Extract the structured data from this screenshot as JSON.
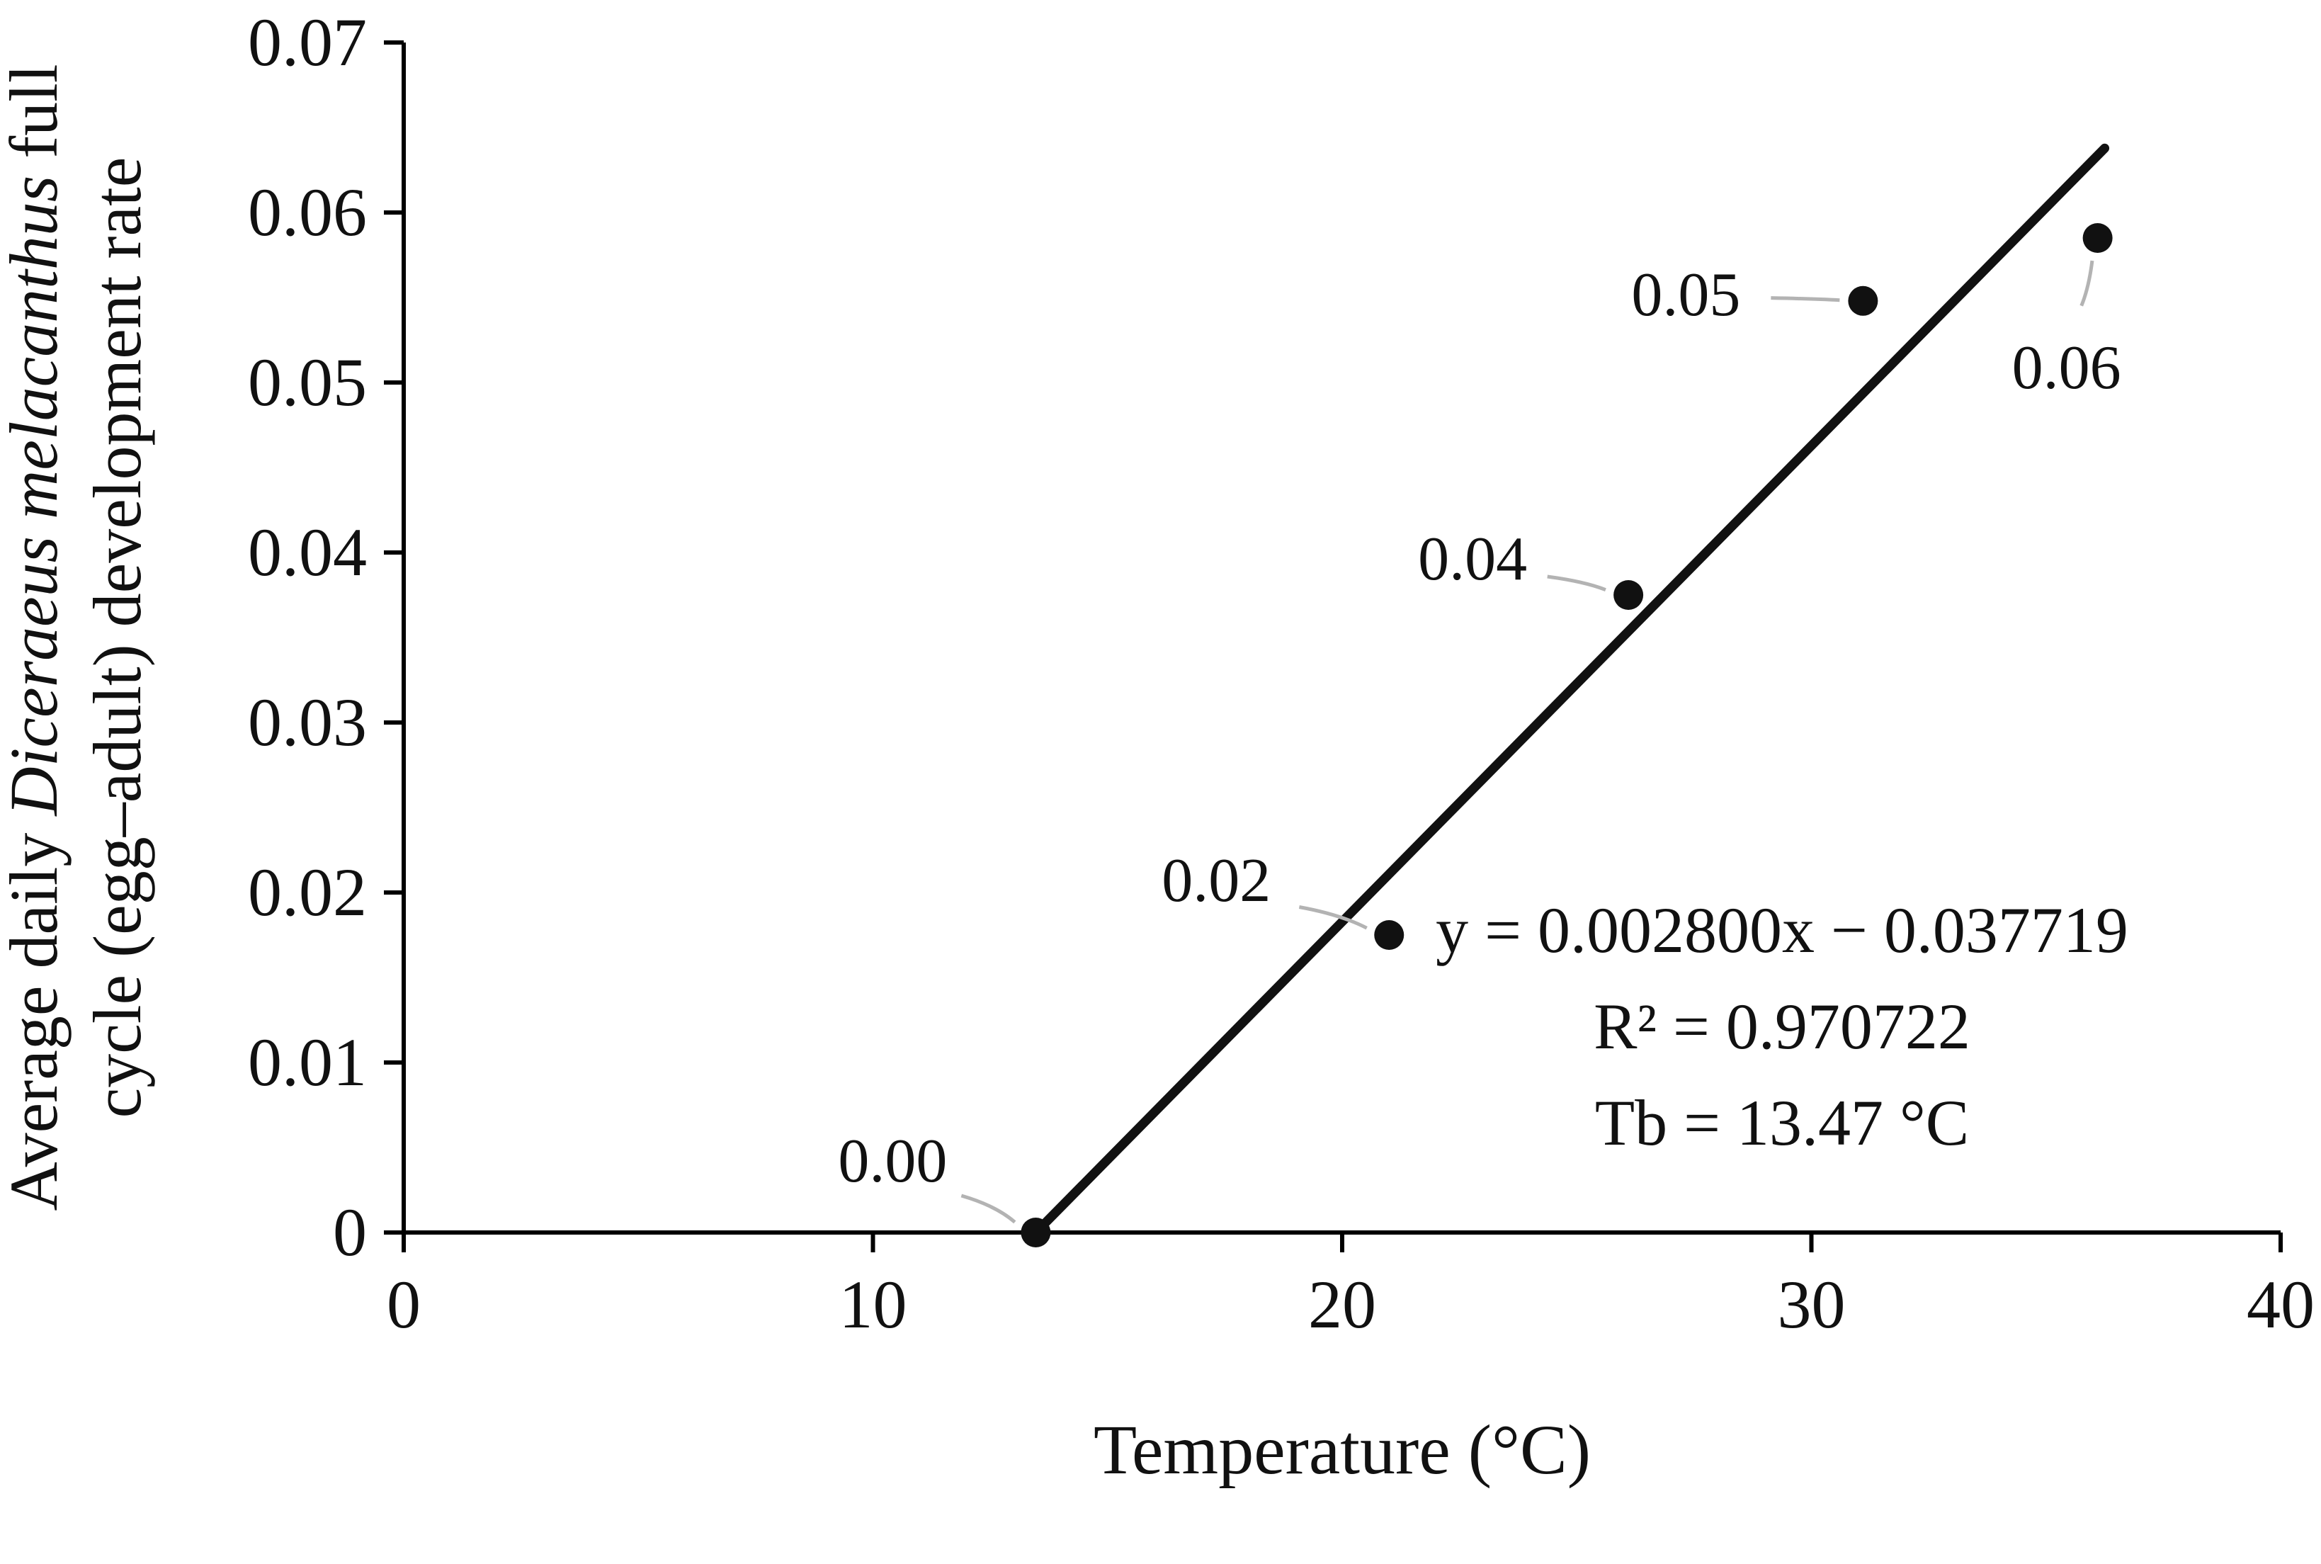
{
  "chart_data": {
    "type": "scatter",
    "title": "",
    "x_axis": {
      "label": "Temperature (°C)",
      "min": 0,
      "max": 40,
      "ticks": [
        0,
        10,
        20,
        30,
        40
      ],
      "tick_labels": [
        "0",
        "10",
        "20",
        "30",
        "40"
      ]
    },
    "y_axis": {
      "label_line1_normal": "Average daily ",
      "label_line1_italic": "Diceraeus melacanthus",
      "label_line1_suffix": " full",
      "label_line2": "cycle (egg–adult) development rate",
      "min": 0,
      "max": 0.07,
      "ticks": [
        0,
        0.01,
        0.02,
        0.03,
        0.04,
        0.05,
        0.06,
        0.07
      ],
      "tick_labels": [
        "0",
        "0.01",
        "0.02",
        "0.03",
        "0.04",
        "0.05",
        "0.06",
        "0.07"
      ]
    },
    "points": [
      {
        "x": 13.47,
        "y": 0.0,
        "label": "0.00",
        "label_offset": [
          -101,
          -50
        ]
      },
      {
        "x": 21.0,
        "y": 0.0175,
        "label": "0.02",
        "label_offset": [
          -122,
          -38
        ]
      },
      {
        "x": 26.1,
        "y": 0.0375,
        "label": "0.04",
        "label_offset": [
          -110,
          -25
        ]
      },
      {
        "x": 31.1,
        "y": 0.0548,
        "label": "0.05",
        "label_offset": [
          -125,
          -4
        ]
      },
      {
        "x": 36.1,
        "y": 0.0585,
        "label": "0.06",
        "label_offset": [
          -22,
          92
        ]
      }
    ],
    "trendline": {
      "slope": 0.0028,
      "intercept": -0.037719,
      "x_start": 13.47,
      "x_end": 36.25
    },
    "annotation": {
      "line1": "y = 0.002800x − 0.037719",
      "line2": "R² = 0.970722",
      "line3": "Tb = 13.47 °C"
    },
    "legend": null,
    "grid": false,
    "colors": {
      "point": "#111111",
      "trendline": "#111111",
      "axis": "#000000",
      "leader": "#b3b3b3",
      "text": "#111111"
    }
  }
}
